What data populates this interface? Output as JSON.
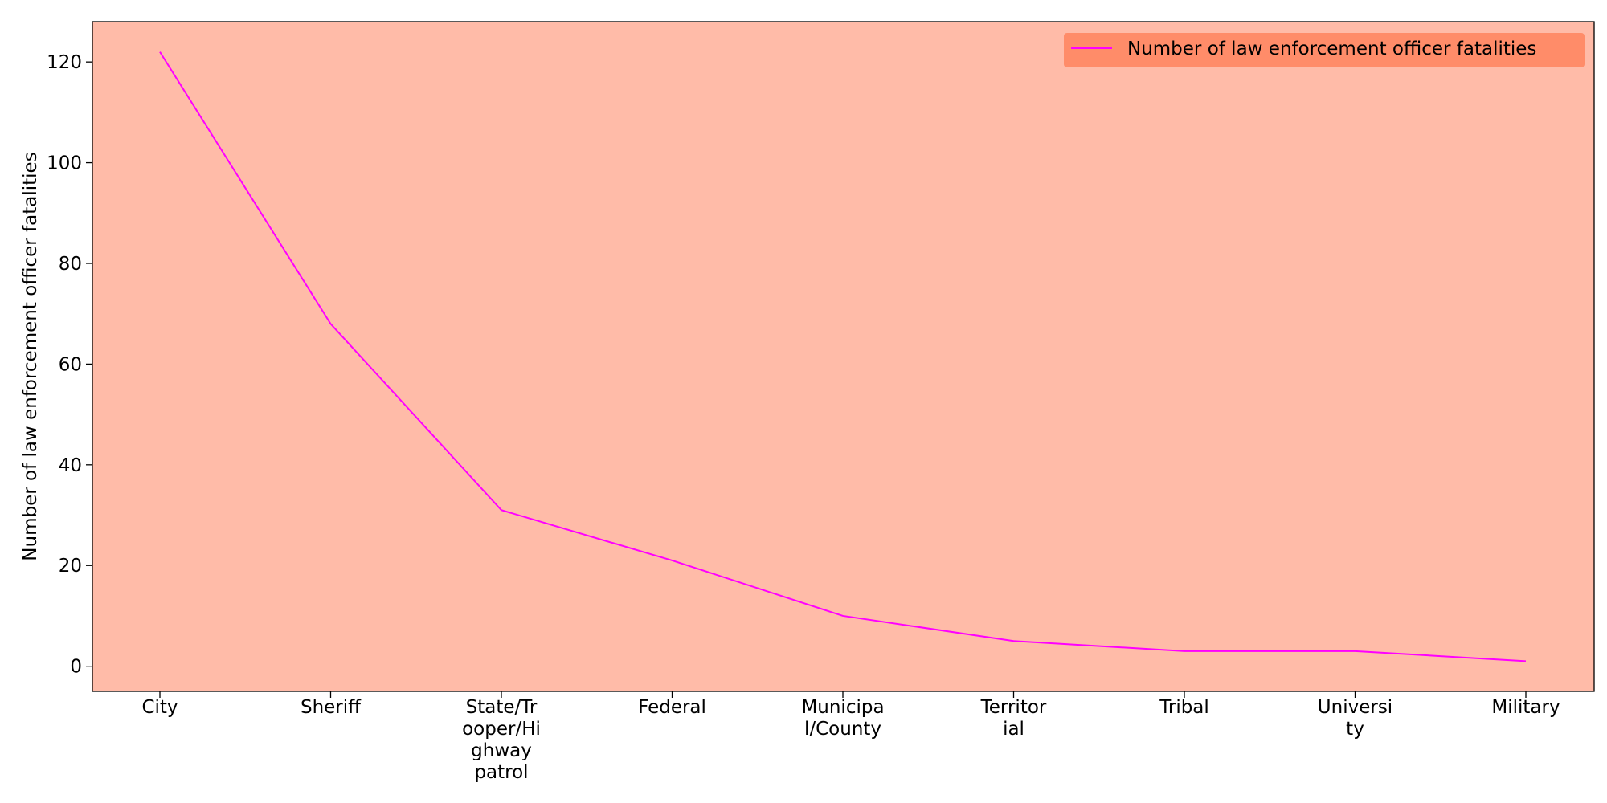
{
  "chart_data": {
    "type": "line",
    "categories": [
      [
        "City"
      ],
      [
        "Sheriff"
      ],
      [
        "State/Tr",
        "ooper/Hi",
        "ghway",
        "patrol"
      ],
      [
        "Federal"
      ],
      [
        "Municipa",
        "l/County"
      ],
      [
        "Territor",
        "ial"
      ],
      [
        "Tribal"
      ],
      [
        "Universi",
        "ty"
      ],
      [
        "Military"
      ]
    ],
    "series": [
      {
        "name": "Number of law enforcement officer fatalities",
        "values": [
          122,
          68,
          31,
          21,
          10,
          5,
          3,
          3,
          1
        ],
        "color": "#ff00ff"
      }
    ],
    "title": "",
    "xlabel": "",
    "ylabel": "Number of law enforcement officer fatalities",
    "ylim": [
      -5,
      128
    ],
    "yticks": [
      0,
      20,
      40,
      60,
      80,
      100,
      120
    ],
    "grid": false,
    "legend_position": "top-right",
    "plot_background": "#ffbba8",
    "legend_background": "#ff8c69"
  }
}
